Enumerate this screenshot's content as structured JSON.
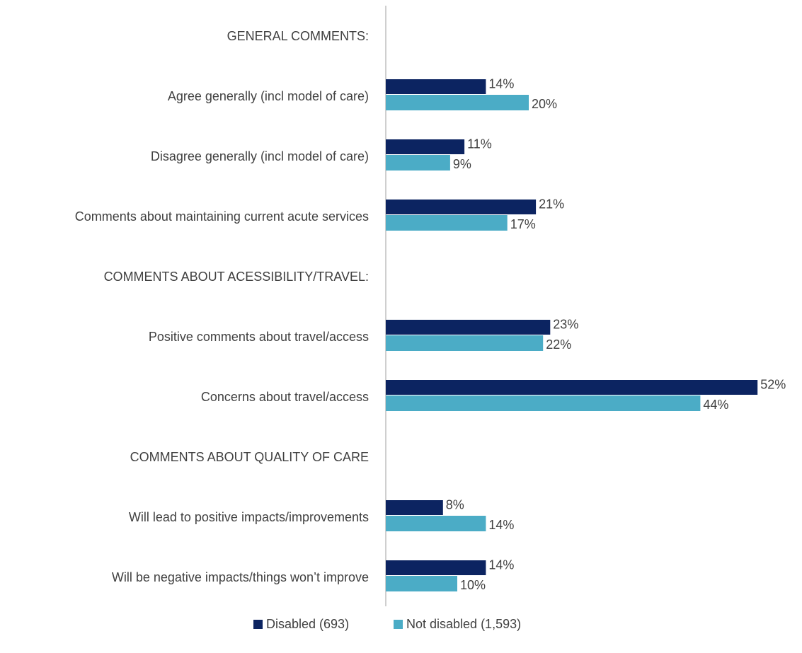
{
  "chart_data": {
    "type": "bar",
    "orientation": "horizontal",
    "categories": [
      "GENERAL COMMENTS:",
      "Agree generally (incl model of care)",
      "Disagree generally (incl model of care)",
      "Comments about maintaining current acute services",
      "COMMENTS ABOUT ACESSIBILITY/TRAVEL:",
      "Positive comments about travel/access",
      "Concerns about travel/access",
      "COMMENTS ABOUT QUALITY OF CARE",
      "Will lead to positive impacts/improvements",
      "Will be negative impacts/things won’t improve"
    ],
    "series": [
      {
        "name": "Disabled (693)",
        "color": "#0c2461",
        "values": [
          null,
          14,
          11,
          21,
          null,
          23,
          52,
          null,
          8,
          14
        ],
        "value_labels": [
          null,
          "14%",
          "11%",
          "21%",
          null,
          "23%",
          "52%",
          null,
          "8%",
          "14%"
        ]
      },
      {
        "name": "Not disabled (1,593)",
        "color": "#4bacc6",
        "values": [
          null,
          20,
          9,
          17,
          null,
          22,
          44,
          null,
          14,
          10
        ],
        "value_labels": [
          null,
          "20%",
          "9%",
          "17%",
          null,
          "22%",
          "44%",
          null,
          "14%",
          "10%"
        ]
      }
    ],
    "legend": "bottom"
  }
}
